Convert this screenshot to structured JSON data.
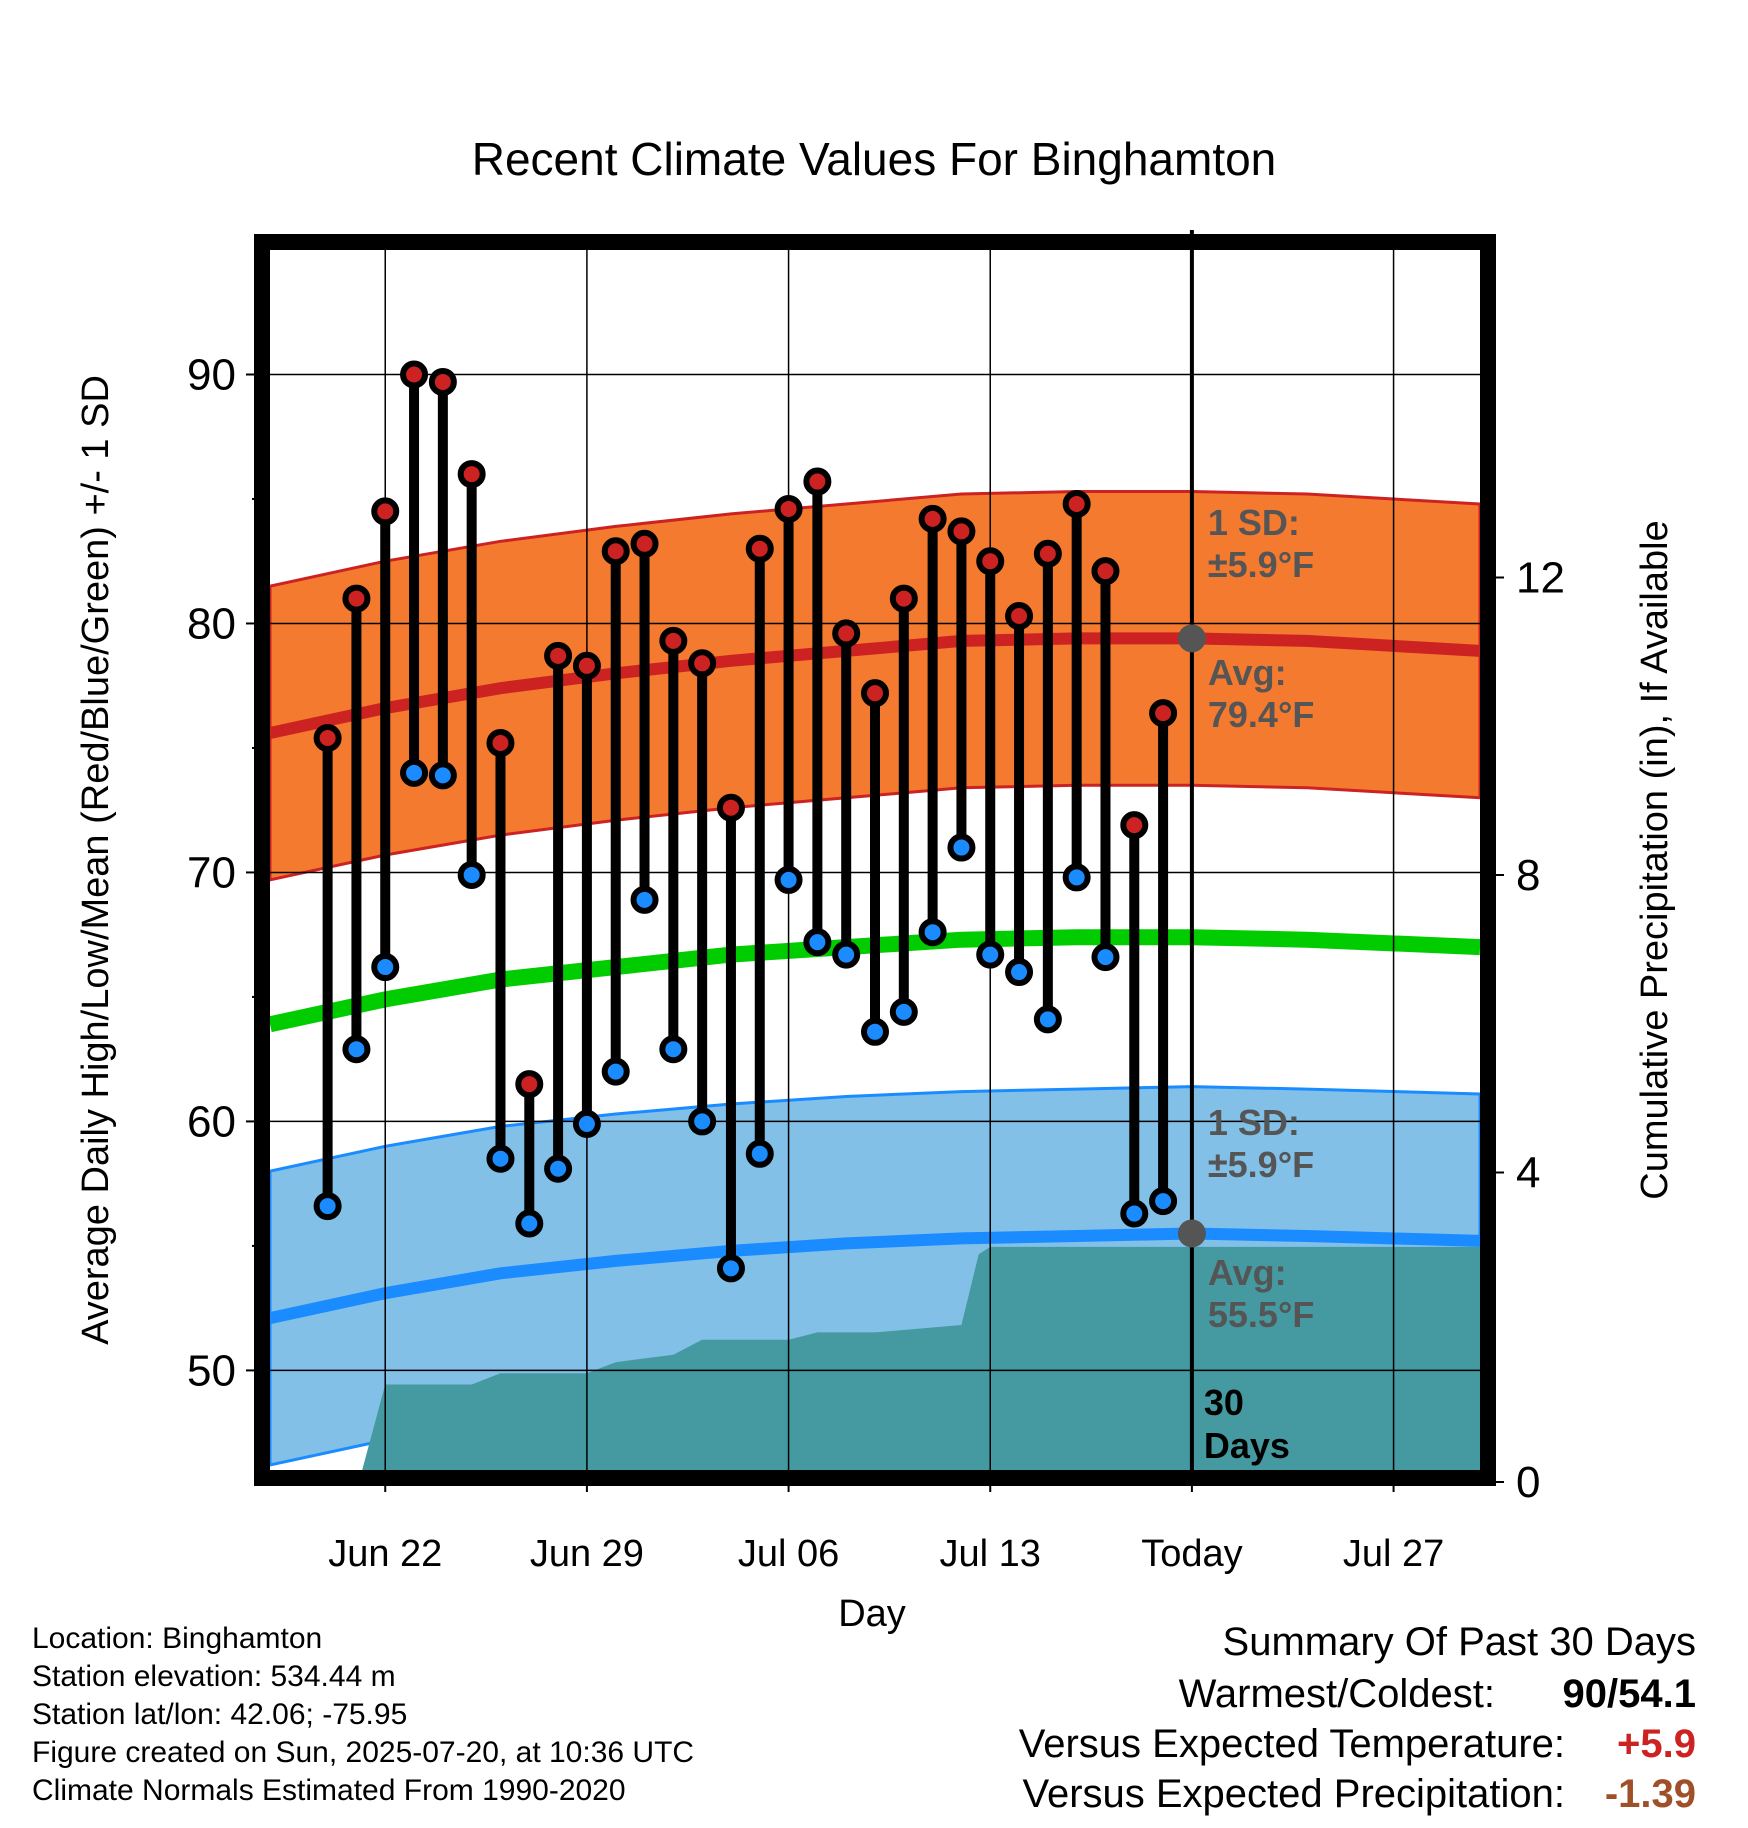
{
  "chart_data": {
    "type": "line",
    "title": "Recent Climate Values For Binghamton",
    "xlabel": "Day",
    "ylabel": "Average Daily High/Low/Mean (Red/Blue/Green) +/- 1 SD",
    "y2label": "Cumulative Precipitation (in), If Available",
    "xlim_days": [
      -32,
      10
    ],
    "ylim": [
      46,
      95
    ],
    "y2lim": [
      0,
      16
    ],
    "yticks": [
      50,
      60,
      70,
      80,
      90
    ],
    "y2ticks": [
      0,
      4,
      8,
      12
    ],
    "xticks": [
      {
        "day": -28,
        "label": "Jun 22"
      },
      {
        "day": -21,
        "label": "Jun 29"
      },
      {
        "day": -14,
        "label": "Jul 06"
      },
      {
        "day": -7,
        "label": "Jul 13"
      },
      {
        "day": 0,
        "label": "Today"
      },
      {
        "day": 7,
        "label": "Jul 27"
      }
    ],
    "grid": true,
    "daily": {
      "days": [
        -30,
        -29,
        -28,
        -27,
        -26,
        -25,
        -24,
        -23,
        -22,
        -21,
        -20,
        -19,
        -18,
        -17,
        -16,
        -15,
        -14,
        -13,
        -12,
        -11,
        -10,
        -9,
        -8,
        -7,
        -6,
        -5,
        -4,
        -3,
        -2,
        -1
      ],
      "high": [
        75.4,
        81.0,
        84.5,
        90.0,
        89.7,
        86.0,
        75.2,
        61.5,
        78.7,
        78.3,
        82.9,
        83.2,
        79.3,
        78.4,
        72.6,
        83.0,
        84.6,
        85.7,
        79.6,
        77.2,
        81.0,
        84.2,
        83.7,
        82.5,
        80.3,
        82.8,
        84.8,
        82.1,
        71.9,
        76.4
      ],
      "low": [
        56.6,
        62.9,
        66.2,
        74.0,
        73.9,
        69.9,
        58.5,
        55.9,
        58.1,
        59.9,
        62.0,
        68.9,
        62.9,
        60.0,
        54.1,
        58.7,
        69.7,
        67.2,
        66.7,
        63.6,
        64.4,
        67.6,
        71.0,
        66.7,
        66.0,
        64.1,
        69.8,
        66.6,
        56.3,
        56.8
      ]
    },
    "normals": {
      "days": [
        -32,
        -28,
        -24,
        -20,
        -16,
        -12,
        -8,
        -4,
        0,
        4,
        10
      ],
      "avg_high": [
        75.6,
        76.6,
        77.4,
        78.0,
        78.5,
        78.9,
        79.3,
        79.4,
        79.4,
        79.3,
        78.9
      ],
      "avg_low": [
        52.1,
        53.1,
        53.9,
        54.4,
        54.8,
        55.1,
        55.3,
        55.4,
        55.5,
        55.4,
        55.2
      ],
      "avg_mean": [
        63.9,
        64.9,
        65.7,
        66.2,
        66.7,
        67.0,
        67.3,
        67.4,
        67.4,
        67.3,
        67.0
      ],
      "sd": 5.9
    },
    "precipitation": {
      "days": [
        -32,
        -28.8,
        -28,
        -25,
        -24,
        -21,
        -20,
        -18,
        -17,
        -14,
        -13,
        -11,
        -8,
        -7.4,
        -7,
        10
      ],
      "cumulative": [
        0,
        0,
        1.15,
        1.15,
        1.3,
        1.3,
        1.45,
        1.55,
        1.75,
        1.75,
        1.85,
        1.85,
        1.95,
        2.9,
        3.0,
        3.0
      ]
    },
    "series": [
      {
        "color": "#cc2222"
      },
      {
        "color": "#1a8cff"
      },
      {
        "color": "#00cc00"
      }
    ],
    "annotations": {
      "high_sd_l1": "1 SD:",
      "high_sd_l2": "±5.9°F",
      "high_avg_l1": "Avg:",
      "high_avg_l2": "79.4°F",
      "low_sd_l1": "1 SD:",
      "low_sd_l2": "±5.9°F",
      "low_avg_l1": "Avg:",
      "low_avg_l2": "55.5°F",
      "days_l1": "30",
      "days_l2": "Days"
    }
  },
  "colors": {
    "high_band": "#f47a30",
    "low_band": "#82c0e8",
    "high_line": "#cc2222",
    "low_line": "#1a8cff",
    "mean_line": "#00cc00",
    "precip": "#449aa0",
    "marker_high": "#cc2222",
    "marker_low": "#1a8cff",
    "annotation_text": "#555555",
    "temp_anomaly": "#cc2222",
    "precip_anomaly": "#a05028"
  },
  "info": {
    "location": "Location: Binghamton",
    "elevation": "Station elevation: 534.44 m",
    "latlon": "Station lat/lon: 42.06; -75.95",
    "created": "Figure created on Sun, 2025-07-20, at 10:36 UTC",
    "normals": "Climate Normals Estimated From 1990-2020"
  },
  "summary": {
    "heading": "Summary Of Past 30 Days",
    "warm_cold_label": "Warmest/Coldest:",
    "warm_cold_value": "90/54.1",
    "temp_label": "Versus Expected Temperature:",
    "temp_value": "+5.9",
    "precip_label": "Versus Expected Precipitation:",
    "precip_value": "-1.39"
  }
}
